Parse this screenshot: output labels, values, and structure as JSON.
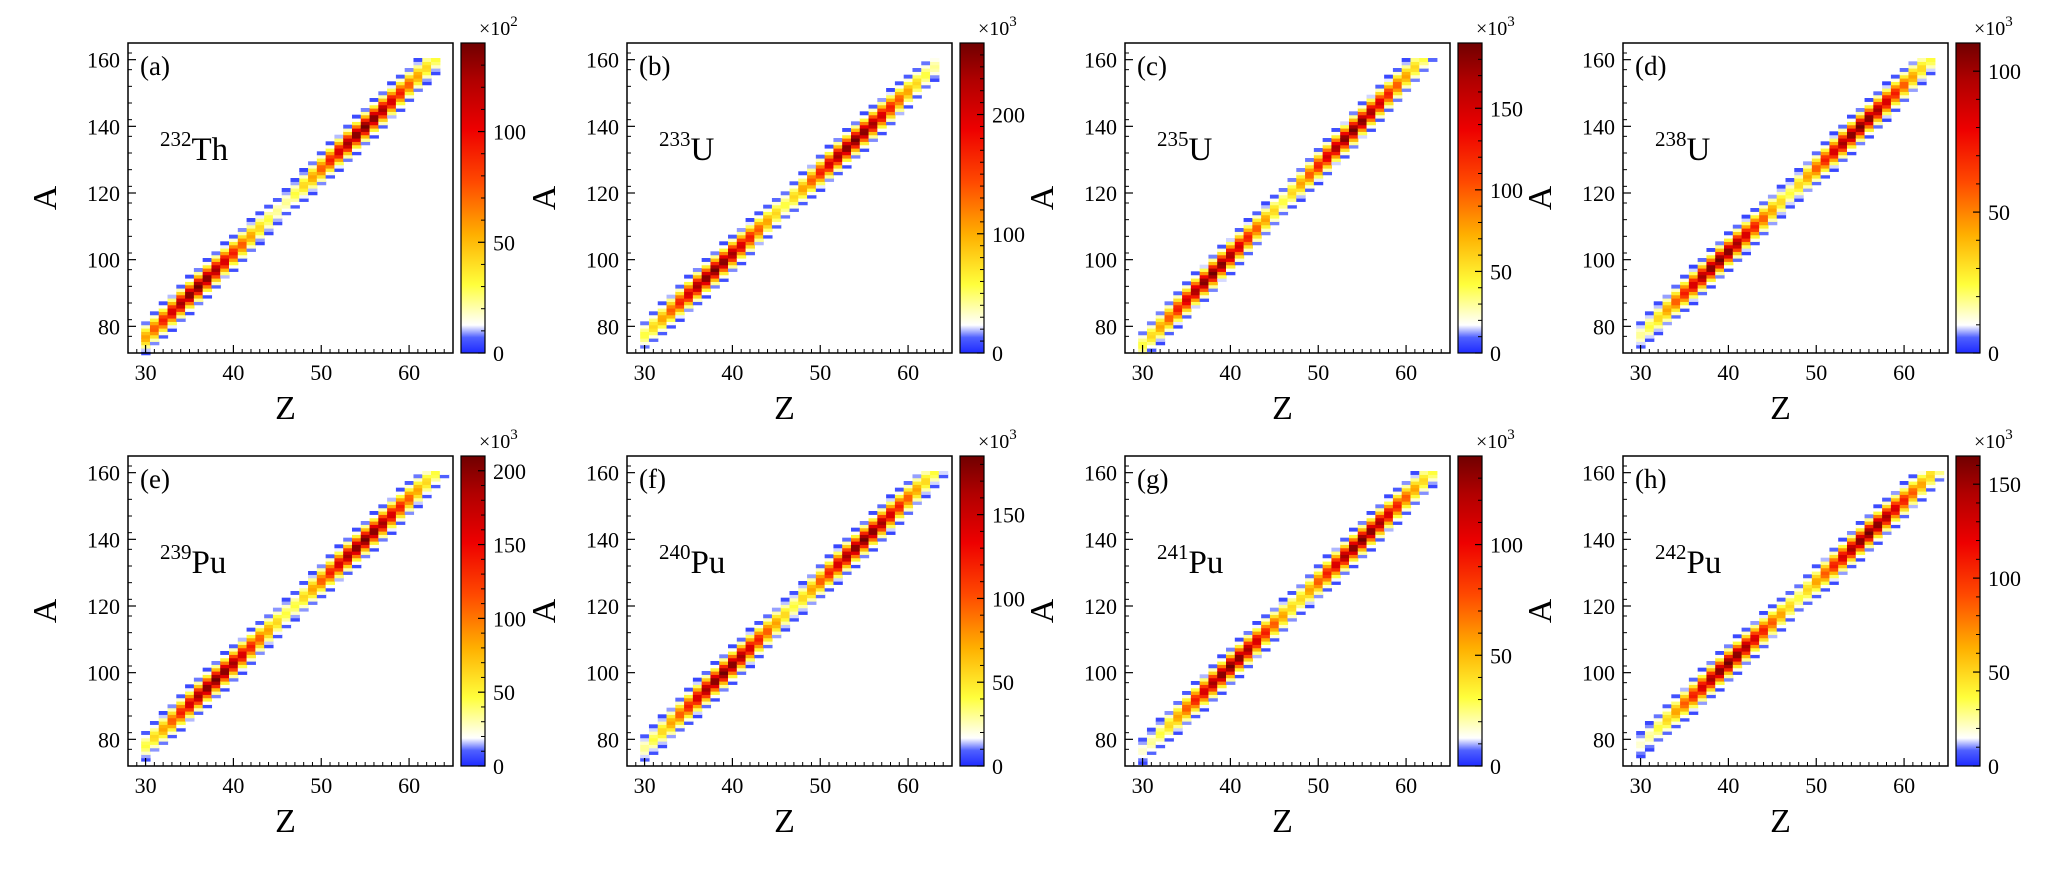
{
  "figure": {
    "layout": {
      "rows": 2,
      "cols": 4
    }
  },
  "chart_data": [
    {
      "type": "heatmap",
      "panel": "(a)",
      "mass_number": "232",
      "element": "Th",
      "xlabel": "Z",
      "ylabel": "A",
      "xlim": [
        28,
        65
      ],
      "ylim": [
        72,
        165
      ],
      "xticks": [
        30,
        40,
        50,
        60
      ],
      "yticks": [
        80,
        100,
        120,
        140,
        160
      ],
      "colorbar": {
        "multiplier": "×10",
        "exponent": "2",
        "range": [
          0,
          140
        ],
        "ticks": [
          0,
          50,
          100
        ]
      },
      "peaks": [
        {
          "z": 36,
          "a": 92,
          "value": 140
        },
        {
          "z": 55,
          "a": 140,
          "value": 140
        }
      ],
      "z_range": [
        30,
        63
      ]
    },
    {
      "type": "heatmap",
      "panel": "(b)",
      "mass_number": "233",
      "element": "U",
      "xlabel": "Z",
      "ylabel": "A",
      "xlim": [
        28,
        65
      ],
      "ylim": [
        72,
        165
      ],
      "xticks": [
        30,
        40,
        50,
        60
      ],
      "yticks": [
        80,
        100,
        120,
        140,
        160
      ],
      "colorbar": {
        "multiplier": "×10",
        "exponent": "3",
        "range": [
          0,
          260
        ],
        "ticks": [
          0,
          100,
          200
        ]
      },
      "peaks": [
        {
          "z": 38,
          "a": 97,
          "value": 260
        },
        {
          "z": 54,
          "a": 136,
          "value": 260
        }
      ],
      "z_range": [
        30,
        63
      ]
    },
    {
      "type": "heatmap",
      "panel": "(c)",
      "mass_number": "235",
      "element": "U",
      "xlabel": "Z",
      "ylabel": "A",
      "xlim": [
        28,
        65
      ],
      "ylim": [
        72,
        165
      ],
      "xticks": [
        30,
        40,
        50,
        60
      ],
      "yticks": [
        80,
        100,
        120,
        140,
        160
      ],
      "colorbar": {
        "multiplier": "×10",
        "exponent": "3",
        "range": [
          0,
          190
        ],
        "ticks": [
          0,
          50,
          100,
          150
        ]
      },
      "peaks": [
        {
          "z": 38,
          "a": 96,
          "value": 190
        },
        {
          "z": 54,
          "a": 139,
          "value": 190
        }
      ],
      "z_range": [
        30,
        63
      ]
    },
    {
      "type": "heatmap",
      "panel": "(d)",
      "mass_number": "238",
      "element": "U",
      "xlabel": "Z",
      "ylabel": "A",
      "xlim": [
        28,
        65
      ],
      "ylim": [
        72,
        165
      ],
      "xticks": [
        30,
        40,
        50,
        60
      ],
      "yticks": [
        80,
        100,
        120,
        140,
        160
      ],
      "colorbar": {
        "multiplier": "×10",
        "exponent": "3",
        "range": [
          0,
          110
        ],
        "ticks": [
          0,
          50,
          100
        ]
      },
      "peaks": [
        {
          "z": 39,
          "a": 100,
          "value": 110
        },
        {
          "z": 55,
          "a": 140,
          "value": 110
        }
      ],
      "z_range": [
        30,
        63
      ]
    },
    {
      "type": "heatmap",
      "panel": "(e)",
      "mass_number": "239",
      "element": "Pu",
      "xlabel": "Z",
      "ylabel": "A",
      "xlim": [
        28,
        65
      ],
      "ylim": [
        72,
        165
      ],
      "xticks": [
        30,
        40,
        50,
        60
      ],
      "yticks": [
        80,
        100,
        120,
        140,
        160
      ],
      "colorbar": {
        "multiplier": "×10",
        "exponent": "3",
        "range": [
          0,
          210
        ],
        "ticks": [
          0,
          50,
          100,
          150,
          200
        ]
      },
      "peaks": [
        {
          "z": 38,
          "a": 98,
          "value": 210
        },
        {
          "z": 55,
          "a": 140,
          "value": 210
        }
      ],
      "z_range": [
        30,
        64
      ]
    },
    {
      "type": "heatmap",
      "panel": "(f)",
      "mass_number": "240",
      "element": "Pu",
      "xlabel": "Z",
      "ylabel": "A",
      "xlim": [
        28,
        65
      ],
      "ylim": [
        72,
        165
      ],
      "xticks": [
        30,
        40,
        50,
        60
      ],
      "yticks": [
        80,
        100,
        120,
        140,
        160
      ],
      "colorbar": {
        "multiplier": "×10",
        "exponent": "3",
        "range": [
          0,
          185
        ],
        "ticks": [
          0,
          50,
          100,
          150
        ]
      },
      "peaks": [
        {
          "z": 39,
          "a": 100,
          "value": 185
        },
        {
          "z": 55,
          "a": 140,
          "value": 185
        }
      ],
      "z_range": [
        30,
        64
      ]
    },
    {
      "type": "heatmap",
      "panel": "(g)",
      "mass_number": "241",
      "element": "Pu",
      "xlabel": "Z",
      "ylabel": "A",
      "xlim": [
        28,
        65
      ],
      "ylim": [
        72,
        165
      ],
      "xticks": [
        30,
        40,
        50,
        60
      ],
      "yticks": [
        80,
        100,
        120,
        140,
        160
      ],
      "colorbar": {
        "multiplier": "×10",
        "exponent": "3",
        "range": [
          0,
          140
        ],
        "ticks": [
          0,
          50,
          100
        ]
      },
      "peaks": [
        {
          "z": 40,
          "a": 102,
          "value": 140
        },
        {
          "z": 55,
          "a": 140,
          "value": 140
        }
      ],
      "z_range": [
        30,
        63
      ]
    },
    {
      "type": "heatmap",
      "panel": "(h)",
      "mass_number": "242",
      "element": "Pu",
      "xlabel": "Z",
      "ylabel": "A",
      "xlim": [
        28,
        65
      ],
      "ylim": [
        72,
        165
      ],
      "xticks": [
        30,
        40,
        50,
        60
      ],
      "yticks": [
        80,
        100,
        120,
        140,
        160
      ],
      "colorbar": {
        "multiplier": "×10",
        "exponent": "3",
        "range": [
          0,
          165
        ],
        "ticks": [
          0,
          50,
          100,
          150
        ]
      },
      "peaks": [
        {
          "z": 40,
          "a": 103,
          "value": 165
        },
        {
          "z": 56,
          "a": 142,
          "value": 165
        }
      ],
      "z_range": [
        30,
        64
      ]
    }
  ]
}
